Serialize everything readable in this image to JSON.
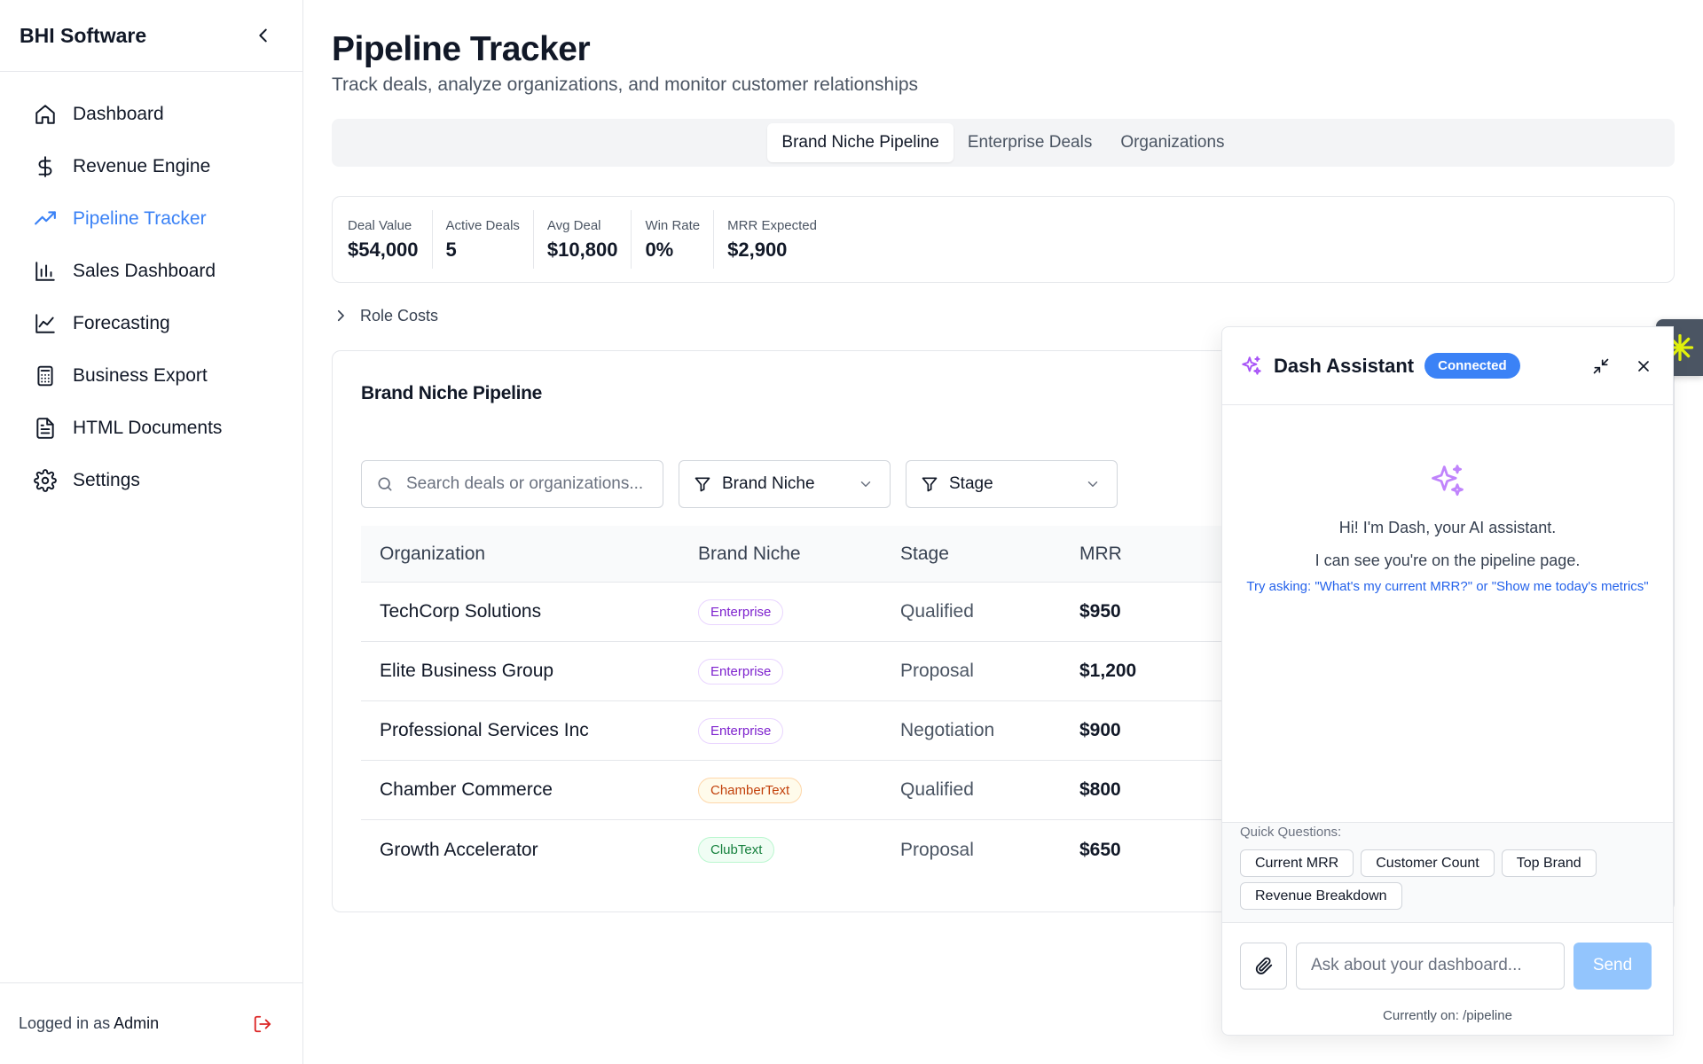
{
  "sidebar": {
    "brand": "BHI Software",
    "items": [
      {
        "label": "Dashboard",
        "icon": "home-icon"
      },
      {
        "label": "Revenue Engine",
        "icon": "dollar-icon"
      },
      {
        "label": "Pipeline Tracker",
        "icon": "trending-up-icon"
      },
      {
        "label": "Sales Dashboard",
        "icon": "bar-chart-icon"
      },
      {
        "label": "Forecasting",
        "icon": "line-chart-icon"
      },
      {
        "label": "Business Export",
        "icon": "calculator-icon"
      },
      {
        "label": "HTML Documents",
        "icon": "file-text-icon"
      },
      {
        "label": "Settings",
        "icon": "gear-icon"
      }
    ],
    "active_index": 2,
    "footer": {
      "prefix": "Logged in as",
      "user": "Admin"
    }
  },
  "header": {
    "title": "Pipeline Tracker",
    "subtitle": "Track deals, analyze organizations, and monitor customer relationships"
  },
  "tabs": [
    {
      "label": "Brand Niche Pipeline",
      "active": true
    },
    {
      "label": "Enterprise Deals",
      "active": false
    },
    {
      "label": "Organizations",
      "active": false
    }
  ],
  "stats": [
    {
      "label": "Deal Value",
      "value": "$54,000"
    },
    {
      "label": "Active Deals",
      "value": "5"
    },
    {
      "label": "Avg Deal",
      "value": "$10,800"
    },
    {
      "label": "Win Rate",
      "value": "0%"
    },
    {
      "label": "MRR Expected",
      "value": "$2,900"
    }
  ],
  "role_costs": {
    "label": "Role Costs"
  },
  "pipeline": {
    "title": "Brand Niche Pipeline",
    "search_placeholder": "Search deals or organizations...",
    "filter_niche": "Brand Niche",
    "filter_stage": "Stage",
    "columns": [
      "Organization",
      "Brand Niche",
      "Stage",
      "MRR"
    ],
    "rows": [
      {
        "org": "TechCorp Solutions",
        "niche": "Enterprise",
        "niche_type": "ent",
        "stage": "Qualified",
        "mrr": "$950"
      },
      {
        "org": "Elite Business Group",
        "niche": "Enterprise",
        "niche_type": "ent",
        "stage": "Proposal",
        "mrr": "$1,200"
      },
      {
        "org": "Professional Services Inc",
        "niche": "Enterprise",
        "niche_type": "ent",
        "stage": "Negotiation",
        "mrr": "$900"
      },
      {
        "org": "Chamber Commerce",
        "niche": "ChamberText",
        "niche_type": "cham",
        "stage": "Qualified",
        "mrr": "$800"
      },
      {
        "org": "Growth Accelerator",
        "niche": "ClubText",
        "niche_type": "club",
        "stage": "Proposal",
        "mrr": "$650"
      }
    ]
  },
  "assistant": {
    "title": "Dash Assistant",
    "status": "Connected",
    "greeting": "Hi! I'm Dash, your AI assistant.",
    "context": "I can see you're on the pipeline page.",
    "suggestion": "Try asking: \"What's my current MRR?\" or \"Show me today's metrics\"",
    "quick_label": "Quick Questions:",
    "quick": [
      "Current MRR",
      "Customer Count",
      "Top Brand",
      "Revenue Breakdown"
    ],
    "input_placeholder": "Ask about your dashboard...",
    "send_label": "Send",
    "footer": "Currently on: /pipeline"
  },
  "colors": {
    "accent": "#3b82f6",
    "fab_bg": "#4b5563",
    "fab_icon": "#e3f20c"
  }
}
